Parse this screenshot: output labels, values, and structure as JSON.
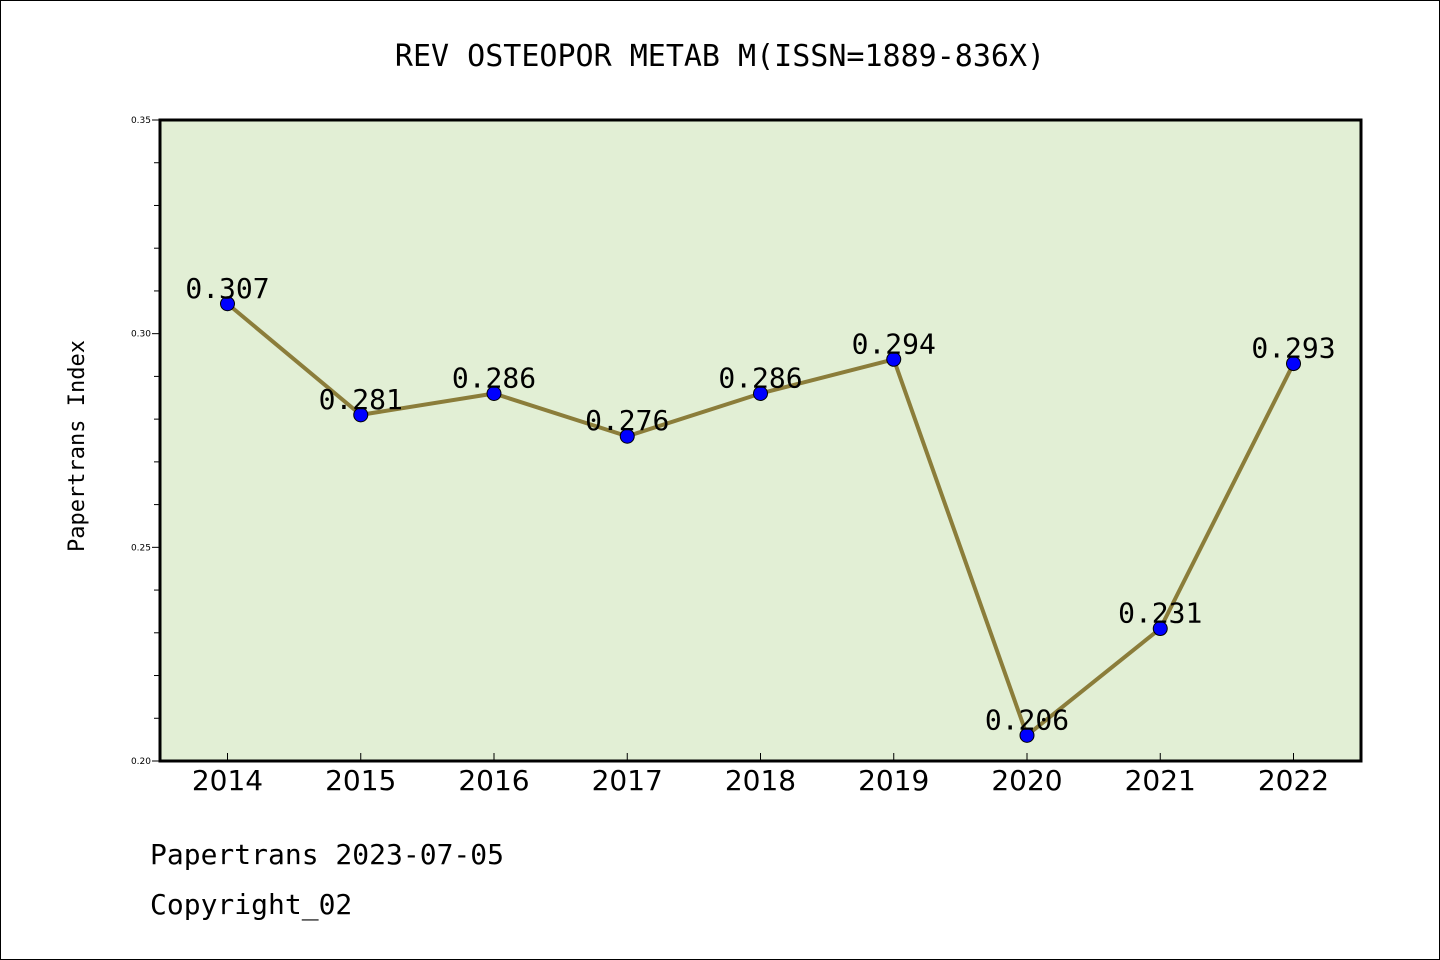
{
  "chart_data": {
    "type": "line",
    "title": "REV OSTEOPOR METAB M(ISSN=1889-836X)",
    "ylabel": "Papertrans Index",
    "xlabel": "",
    "categories": [
      "2014",
      "2015",
      "2016",
      "2017",
      "2018",
      "2019",
      "2020",
      "2021",
      "2022"
    ],
    "values": [
      0.307,
      0.281,
      0.286,
      0.276,
      0.286,
      0.294,
      0.206,
      0.231,
      0.293
    ],
    "data_labels": [
      "0.307",
      "0.281",
      "0.286",
      "0.276",
      "0.286",
      "0.294",
      "0.206",
      "0.231",
      "0.293"
    ],
    "ylim": [
      0.2,
      0.35
    ],
    "yticks": [
      0.2,
      0.25,
      0.3,
      0.35
    ],
    "ytick_labels": [
      "0.20",
      "0.25",
      "0.30",
      "0.35"
    ],
    "grid": false,
    "colors": {
      "plot_background": "#e2efd5",
      "line": "#8b7d3a",
      "marker": "#0000ff"
    }
  },
  "footer": {
    "line1": "Papertrans 2023-07-05",
    "line2": "Copyright_02"
  }
}
